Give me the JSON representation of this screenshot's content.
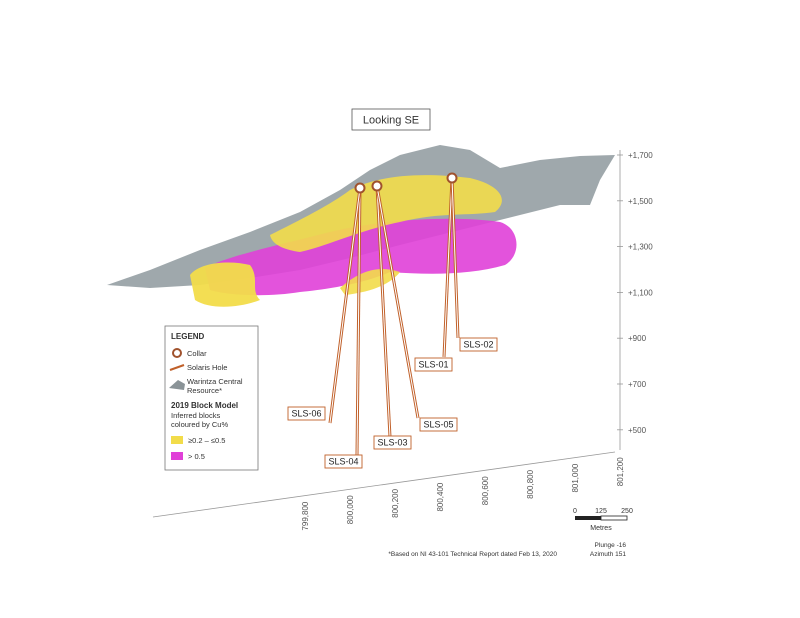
{
  "view": {
    "title": "Looking SE",
    "plunge": "Plunge -16",
    "azimuth": "Azimuth 151"
  },
  "elevation_labels": [
    "+1,700",
    "+1,500",
    "+1,300",
    "+1,100",
    "+900",
    "+700",
    "+500"
  ],
  "easting_labels": [
    "799,800",
    "800,000",
    "800,200",
    "800,400",
    "800,600",
    "800,800",
    "801,000",
    "801,200"
  ],
  "holes": [
    "SLS-01",
    "SLS-02",
    "SLS-03",
    "SLS-04",
    "SLS-05",
    "SLS-06"
  ],
  "legend": {
    "title": "LEGEND",
    "collar": "Collar",
    "hole": "Solaris Hole",
    "resource": "Warintza Central Resource*",
    "block_model": "2019 Block Model",
    "block_desc": "Inferred blocks coloured by Cu%",
    "low": "≥0.2 – ≤0.5",
    "high": "> 0.5"
  },
  "scale_bar": {
    "ticks": [
      "0",
      "125",
      "250"
    ],
    "unit": "Metres"
  },
  "footnote": "*Based on NI 43-101 Technical Report dated Feb 13, 2020"
}
